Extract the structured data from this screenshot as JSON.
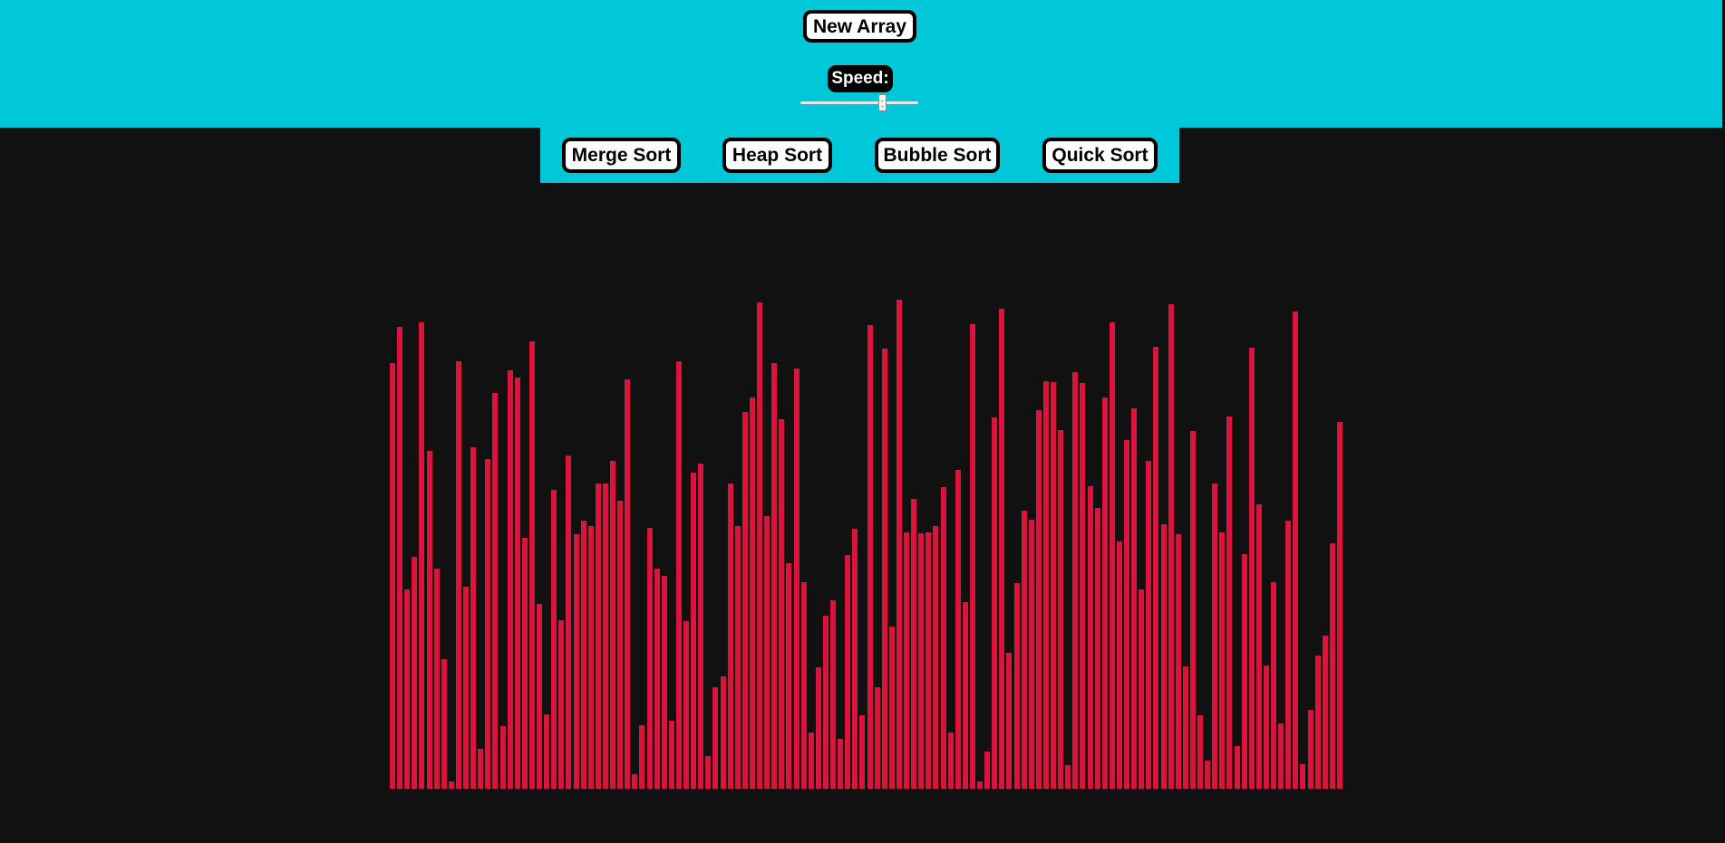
{
  "toolbar": {
    "new_array_label": "New Array",
    "speed_label": "Speed:",
    "speed_value": 0.69
  },
  "algorithms": {
    "merge_label": "Merge Sort",
    "heap_label": "Heap Sort",
    "bubble_label": "Bubble Sort",
    "quick_label": "Quick Sort"
  },
  "colors": {
    "header_bg": "#00c8d9",
    "canvas_bg": "#111111",
    "bar": "#dc143c",
    "button_bg": "#ffffff",
    "button_border": "#000000"
  },
  "array_values": [
    470,
    510,
    220,
    256,
    515,
    373,
    243,
    143,
    8,
    472,
    223,
    377,
    44,
    364,
    437,
    69,
    462,
    454,
    277,
    494,
    204,
    82,
    330,
    186,
    368,
    281,
    296,
    290,
    337,
    337,
    362,
    318,
    452,
    16,
    70,
    288,
    243,
    235,
    75,
    472,
    185,
    349,
    359,
    36,
    112,
    124,
    337,
    290,
    416,
    432,
    537,
    301,
    470,
    408,
    249,
    464,
    228,
    62,
    134,
    191,
    208,
    55,
    258,
    287,
    81,
    512,
    112,
    486,
    179,
    540,
    283,
    320,
    282,
    283,
    290,
    333,
    62,
    352,
    206,
    513,
    8,
    41,
    410,
    530,
    150,
    227,
    307,
    297,
    418,
    450,
    449,
    396,
    26,
    460,
    448,
    334,
    310,
    432,
    515,
    273,
    385,
    420,
    220,
    362,
    488,
    292,
    535,
    281,
    135,
    395,
    81,
    31,
    337,
    283,
    411,
    47,
    259,
    487,
    314,
    136,
    228,
    72,
    296,
    527,
    27,
    87,
    147,
    169,
    271,
    405
  ]
}
